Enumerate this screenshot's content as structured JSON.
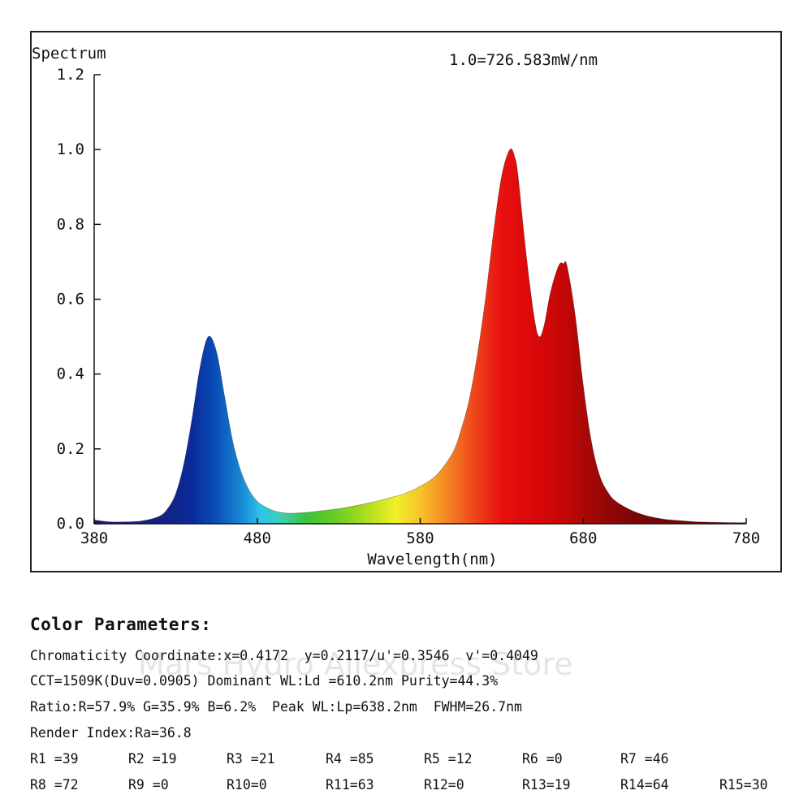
{
  "chart_data": {
    "type": "area",
    "title": "Spectrum",
    "annotation": "1.0=726.583mW/nm",
    "xlabel": "Wavelength(nm)",
    "ylabel": "",
    "xlim": [
      380,
      780
    ],
    "ylim": [
      0,
      1.2
    ],
    "x_ticks": [
      "380",
      "480",
      "580",
      "680",
      "780"
    ],
    "y_ticks": [
      "0.0",
      "0.2",
      "0.4",
      "0.6",
      "0.8",
      "1.0",
      "1.2"
    ],
    "grid": false,
    "legend": "none",
    "fill": "visible-spectrum gradient by wavelength",
    "x": [
      380,
      390,
      400,
      410,
      420,
      425,
      430,
      435,
      440,
      445,
      450,
      455,
      460,
      465,
      470,
      475,
      480,
      485,
      490,
      495,
      500,
      510,
      520,
      530,
      540,
      550,
      560,
      570,
      580,
      590,
      600,
      605,
      610,
      615,
      620,
      625,
      630,
      635,
      638,
      640,
      645,
      650,
      653,
      656,
      660,
      665,
      668,
      670,
      675,
      680,
      685,
      690,
      695,
      700,
      710,
      720,
      730,
      740,
      750,
      760,
      770,
      780
    ],
    "y": [
      0.01,
      0.005,
      0.005,
      0.008,
      0.02,
      0.04,
      0.08,
      0.16,
      0.28,
      0.42,
      0.5,
      0.46,
      0.34,
      0.22,
      0.14,
      0.09,
      0.06,
      0.045,
      0.035,
      0.03,
      0.028,
      0.03,
      0.035,
      0.04,
      0.048,
      0.057,
      0.068,
      0.08,
      0.1,
      0.13,
      0.19,
      0.25,
      0.33,
      0.45,
      0.6,
      0.78,
      0.93,
      1.0,
      0.98,
      0.93,
      0.72,
      0.55,
      0.5,
      0.53,
      0.62,
      0.69,
      0.695,
      0.69,
      0.56,
      0.37,
      0.22,
      0.13,
      0.085,
      0.06,
      0.035,
      0.02,
      0.012,
      0.008,
      0.005,
      0.004,
      0.003,
      0.003
    ]
  },
  "params": {
    "title": "Color Parameters:",
    "line1": "Chromaticity Coordinate:x=0.4172  y=0.2117/u'=0.3546  v'=0.4049",
    "line2": "CCT=1509K(Duv=0.0905) Dominant WL:Ld =610.2nm Purity=44.3%",
    "line3": "Ratio:R=57.9% G=35.9% B=6.2%  Peak WL:Lp=638.2nm  FWHM=26.7nm",
    "line4": "Render Index:Ra=36.8",
    "r_values": [
      "R1 =39",
      "R2 =19",
      "R3 =21",
      "R4 =85",
      "R5 =12",
      "R6 =0",
      "R7 =46",
      "R8 =72",
      "R9 =0",
      "R10=0",
      "R11=63",
      "R12=0",
      "R13=19",
      "R14=64",
      "R15=30"
    ]
  },
  "watermark": "Mars Hydro Aliexpress Store"
}
